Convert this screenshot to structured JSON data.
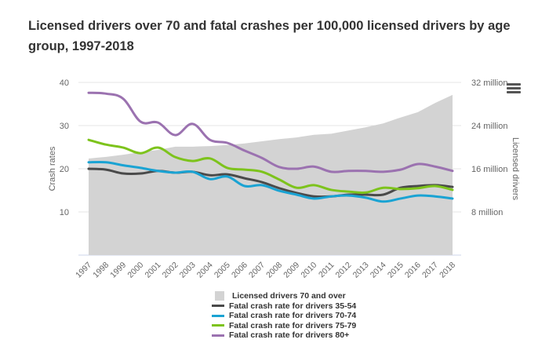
{
  "chart_data": {
    "type": "line",
    "title": "Licensed drivers over 70 and fatal crashes per 100,000 licensed drivers by age group, 1997-2018",
    "xlabel": "",
    "ylabel": "Crash rates",
    "y2label": "Licensed drivers",
    "ylim": [
      0,
      40
    ],
    "y2lim": [
      0,
      32000000
    ],
    "yticks": [
      "10",
      "20",
      "30",
      "40"
    ],
    "y2ticks": [
      "8 million",
      "16 million",
      "24 million",
      "32 million"
    ],
    "grid": true,
    "legend_position": "bottom",
    "x": [
      "1997",
      "1998",
      "1999",
      "2000",
      "2001",
      "2002",
      "2003",
      "2004",
      "2005",
      "2006",
      "2007",
      "2008",
      "2009",
      "2010",
      "2011",
      "2012",
      "2013",
      "2014",
      "2015",
      "2016",
      "2017",
      "2018"
    ],
    "area": {
      "name": "Licensed drivers 70 and over",
      "axis": "right",
      "color": "#d3d3d3",
      "values": [
        17.9,
        18.2,
        18.6,
        19.1,
        19.5,
        20.1,
        20.1,
        20.2,
        20.4,
        20.7,
        21.1,
        21.5,
        21.8,
        22.3,
        22.5,
        23.1,
        23.7,
        24.4,
        25.5,
        26.5,
        28.2,
        29.7
      ],
      "unit": "million"
    },
    "series": [
      {
        "name": "Fatal crash rate for drivers 35-54",
        "color": "#4a4a4a",
        "values": [
          20.0,
          19.8,
          18.9,
          18.9,
          19.5,
          19.1,
          19.3,
          18.5,
          18.7,
          17.8,
          16.9,
          15.5,
          14.4,
          13.6,
          13.6,
          14.0,
          14.0,
          14.0,
          15.6,
          16.0,
          16.2,
          15.8
        ]
      },
      {
        "name": "Fatal crash rate for drivers 70-74",
        "color": "#1aa3d3",
        "values": [
          21.5,
          21.5,
          20.8,
          20.2,
          19.5,
          19.1,
          19.3,
          17.6,
          18.2,
          16.0,
          16.2,
          14.9,
          14.0,
          13.1,
          13.6,
          13.8,
          13.3,
          12.4,
          13.1,
          13.8,
          13.6,
          13.1
        ]
      },
      {
        "name": "Fatal crash rate for drivers 75-79",
        "color": "#7dc31c",
        "values": [
          26.7,
          25.6,
          24.9,
          23.6,
          24.9,
          22.7,
          21.8,
          22.4,
          20.2,
          19.8,
          19.3,
          17.5,
          15.6,
          16.2,
          15.1,
          14.7,
          14.5,
          15.6,
          15.3,
          15.5,
          16.0,
          15.1
        ]
      },
      {
        "name": "Fatal crash rate for drivers 80+",
        "color": "#9b72b0",
        "values": [
          37.6,
          37.4,
          36.2,
          30.9,
          30.7,
          27.8,
          30.4,
          26.7,
          26.0,
          24.2,
          22.5,
          20.4,
          20.0,
          20.5,
          19.3,
          19.5,
          19.5,
          19.3,
          19.8,
          21.1,
          20.5,
          19.5
        ]
      }
    ]
  },
  "ui": {
    "menu_icon": "hamburger-menu-icon"
  }
}
